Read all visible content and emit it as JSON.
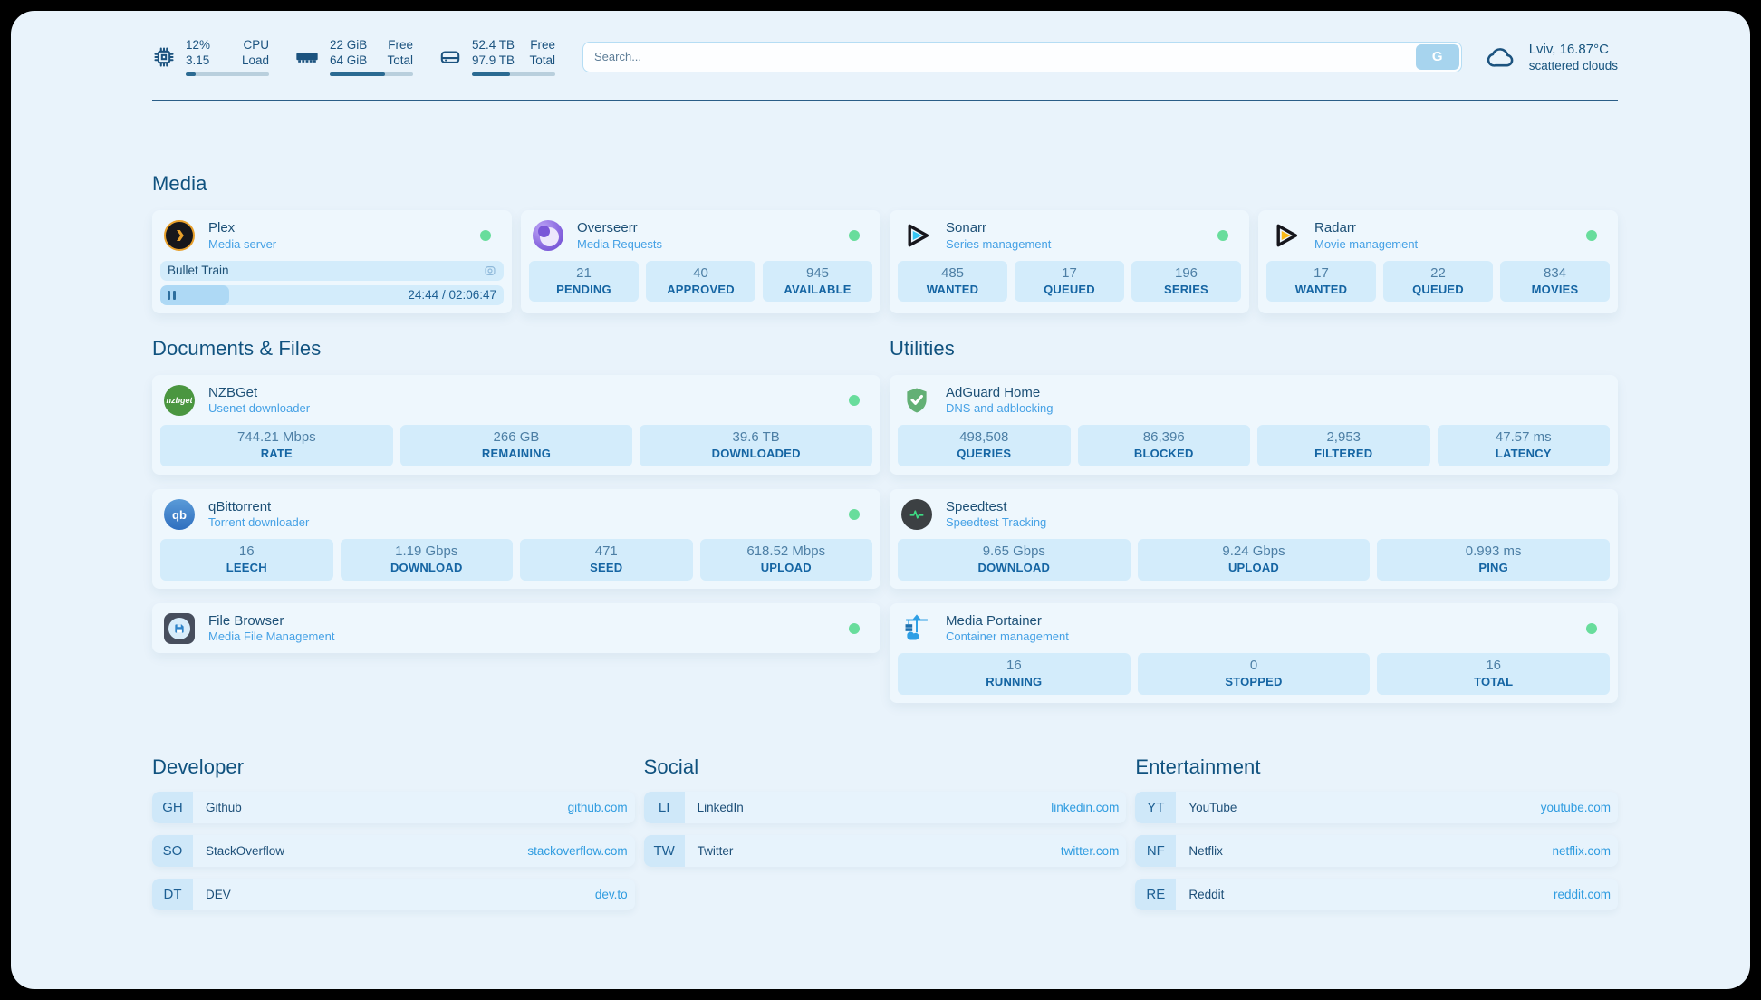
{
  "topbar": {
    "cpu": {
      "value": "12%",
      "label": "CPU",
      "value2": "3.15",
      "label2": "Load",
      "progress_pct": 12
    },
    "ram": {
      "value": "22 GiB",
      "label": "Free",
      "value2": "64 GiB",
      "label2": "Total",
      "progress_pct": 66
    },
    "disk": {
      "value": "52.4 TB",
      "label": "Free",
      "value2": "97.9 TB",
      "label2": "Total",
      "progress_pct": 46
    },
    "search": {
      "placeholder": "Search...",
      "button_label": "G"
    },
    "weather": {
      "location": "Lviv, 16.87°C",
      "condition": "scattered clouds"
    }
  },
  "sections": {
    "media": {
      "title": "Media"
    },
    "documents": {
      "title": "Documents & Files"
    },
    "utilities": {
      "title": "Utilities"
    },
    "developer": {
      "title": "Developer"
    },
    "social": {
      "title": "Social"
    },
    "entertainment": {
      "title": "Entertainment"
    }
  },
  "apps": {
    "plex": {
      "name": "Plex",
      "desc": "Media server",
      "now_playing": "Bullet Train",
      "time": "24:44 / 02:06:47",
      "progress_pct": 20
    },
    "overseerr": {
      "name": "Overseerr",
      "desc": "Media Requests",
      "stats": [
        {
          "value": "21",
          "label": "PENDING"
        },
        {
          "value": "40",
          "label": "APPROVED"
        },
        {
          "value": "945",
          "label": "AVAILABLE"
        }
      ]
    },
    "sonarr": {
      "name": "Sonarr",
      "desc": "Series management",
      "stats": [
        {
          "value": "485",
          "label": "WANTED"
        },
        {
          "value": "17",
          "label": "QUEUED"
        },
        {
          "value": "196",
          "label": "SERIES"
        }
      ]
    },
    "radarr": {
      "name": "Radarr",
      "desc": "Movie management",
      "stats": [
        {
          "value": "17",
          "label": "WANTED"
        },
        {
          "value": "22",
          "label": "QUEUED"
        },
        {
          "value": "834",
          "label": "MOVIES"
        }
      ]
    },
    "nzbget": {
      "name": "NZBGet",
      "desc": "Usenet downloader",
      "icon_text": "nzbget",
      "stats": [
        {
          "value": "744.21 Mbps",
          "label": "RATE"
        },
        {
          "value": "266 GB",
          "label": "REMAINING"
        },
        {
          "value": "39.6 TB",
          "label": "DOWNLOADED"
        }
      ]
    },
    "adguard": {
      "name": "AdGuard Home",
      "desc": "DNS and adblocking",
      "stats": [
        {
          "value": "498,508",
          "label": "QUERIES"
        },
        {
          "value": "86,396",
          "label": "BLOCKED"
        },
        {
          "value": "2,953",
          "label": "FILTERED"
        },
        {
          "value": "47.57 ms",
          "label": "LATENCY"
        }
      ]
    },
    "qbittorrent": {
      "name": "qBittorrent",
      "desc": "Torrent downloader",
      "icon_text": "qb",
      "stats": [
        {
          "value": "16",
          "label": "LEECH"
        },
        {
          "value": "1.19 Gbps",
          "label": "DOWNLOAD"
        },
        {
          "value": "471",
          "label": "SEED"
        },
        {
          "value": "618.52 Mbps",
          "label": "UPLOAD"
        }
      ]
    },
    "speedtest": {
      "name": "Speedtest",
      "desc": "Speedtest Tracking",
      "stats": [
        {
          "value": "9.65 Gbps",
          "label": "DOWNLOAD"
        },
        {
          "value": "9.24 Gbps",
          "label": "UPLOAD"
        },
        {
          "value": "0.993 ms",
          "label": "PING"
        }
      ]
    },
    "filebrowser": {
      "name": "File Browser",
      "desc": "Media File Management"
    },
    "portainer": {
      "name": "Media Portainer",
      "desc": "Container management",
      "stats": [
        {
          "value": "16",
          "label": "RUNNING"
        },
        {
          "value": "0",
          "label": "STOPPED"
        },
        {
          "value": "16",
          "label": "TOTAL"
        }
      ]
    }
  },
  "links": {
    "developer": [
      {
        "abbr": "GH",
        "name": "Github",
        "url": "github.com"
      },
      {
        "abbr": "SO",
        "name": "StackOverflow",
        "url": "stackoverflow.com"
      },
      {
        "abbr": "DT",
        "name": "DEV",
        "url": "dev.to"
      }
    ],
    "social": [
      {
        "abbr": "LI",
        "name": "LinkedIn",
        "url": "linkedin.com"
      },
      {
        "abbr": "TW",
        "name": "Twitter",
        "url": "twitter.com"
      }
    ],
    "entertainment": [
      {
        "abbr": "YT",
        "name": "YouTube",
        "url": "youtube.com"
      },
      {
        "abbr": "NF",
        "name": "Netflix",
        "url": "netflix.com"
      },
      {
        "abbr": "RE",
        "name": "Reddit",
        "url": "reddit.com"
      }
    ]
  },
  "colors": {
    "status_online": "#68dd9c",
    "accent_blue": "#2f9ce0",
    "header_text": "#10527f",
    "page_background": "#e9f3fb",
    "tile_background": "#d3ecfb"
  },
  "icons": [
    "cpu-icon",
    "ram-icon",
    "disk-icon",
    "cloud-icon",
    "search-go-button",
    "plex-icon",
    "overseerr-icon",
    "sonarr-icon",
    "radarr-icon",
    "nzbget-icon",
    "adguard-icon",
    "qbittorrent-icon",
    "speedtest-icon",
    "filebrowser-icon",
    "portainer-icon",
    "pause-icon",
    "camera-icon",
    "status-dot"
  ]
}
